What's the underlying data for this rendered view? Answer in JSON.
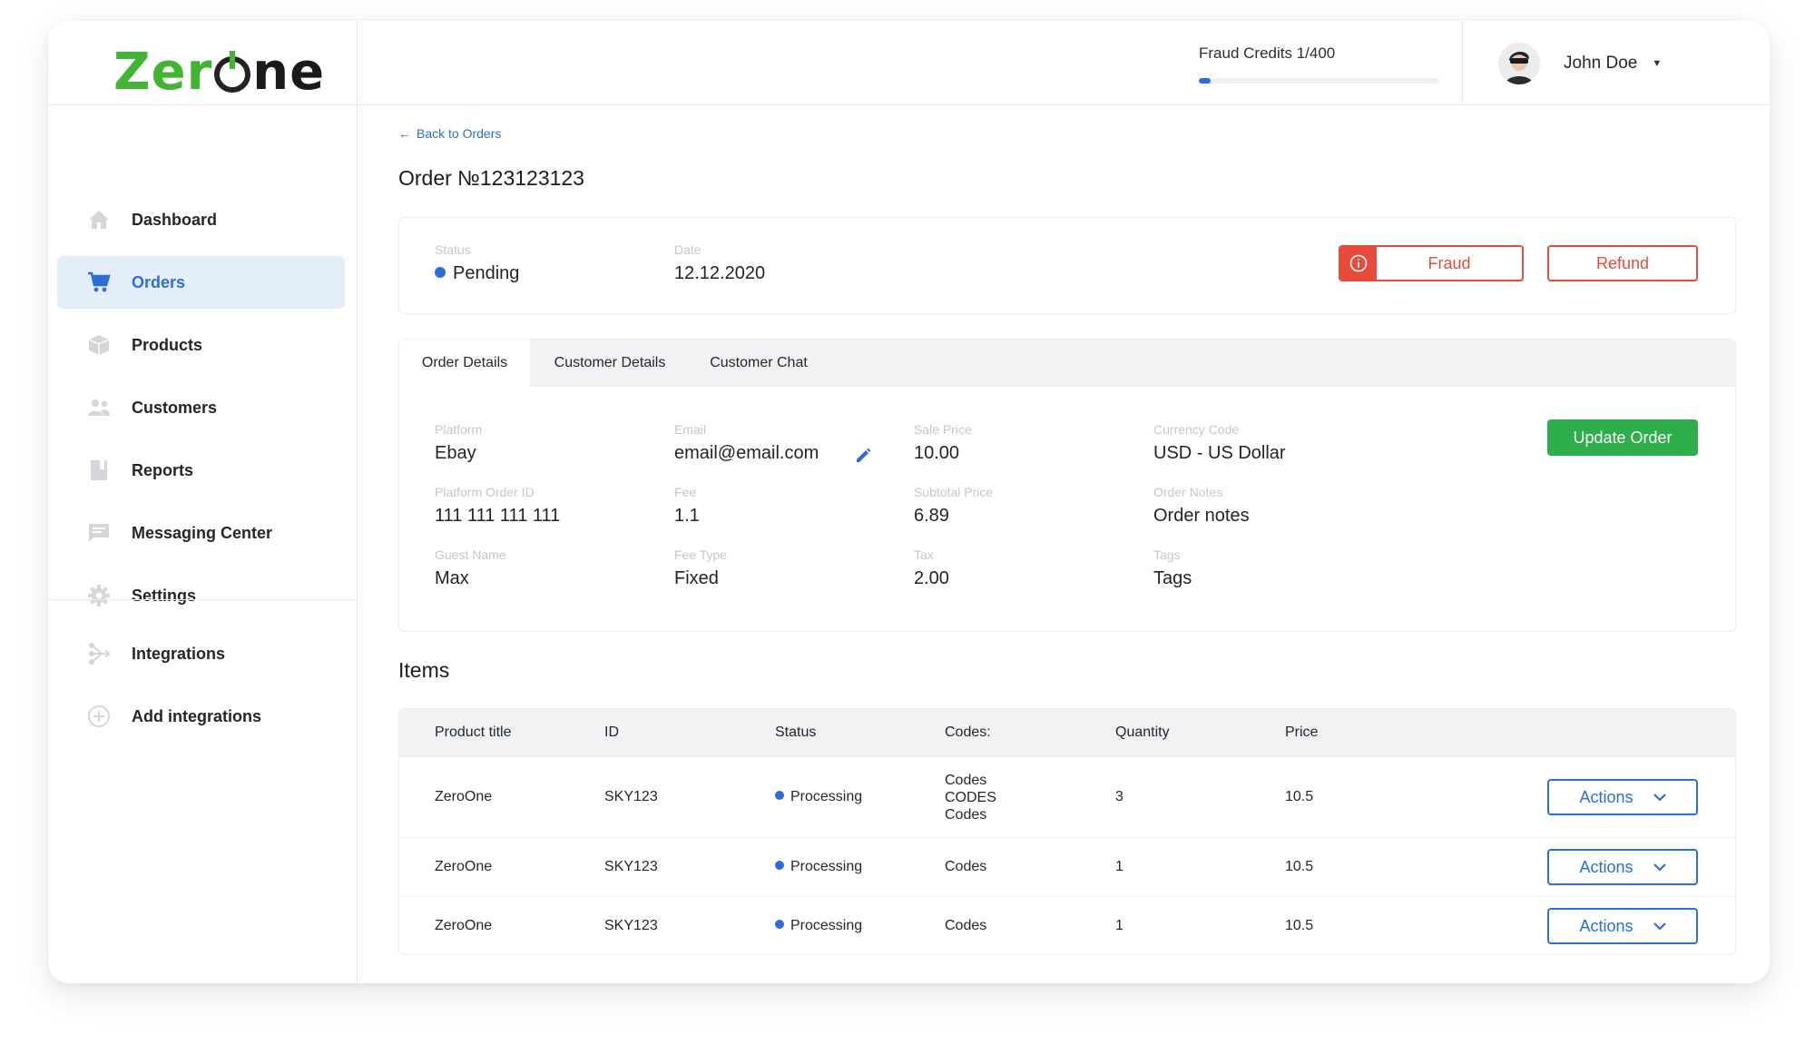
{
  "brand": {
    "logo_text_1": "Zer",
    "logo_text_2": "ne"
  },
  "sidebar": {
    "items": [
      {
        "label": "Dashboard",
        "icon": "home-icon",
        "active": false
      },
      {
        "label": "Orders",
        "icon": "cart-icon",
        "active": true
      },
      {
        "label": "Products",
        "icon": "box-icon",
        "active": false
      },
      {
        "label": "Customers",
        "icon": "users-icon",
        "active": false
      },
      {
        "label": "Reports",
        "icon": "report-icon",
        "active": false
      },
      {
        "label": "Messaging Center",
        "icon": "message-icon",
        "active": false
      },
      {
        "label": "Settings",
        "icon": "gear-icon",
        "active": false
      }
    ],
    "bottom_items": [
      {
        "label": "Integrations",
        "icon": "integration-icon"
      },
      {
        "label": "Add integrations",
        "icon": "plus-circle-icon"
      }
    ]
  },
  "header": {
    "credits_label": "Fraud Credits 1/400",
    "credits_used": 1,
    "credits_total": 400,
    "user_name": "John Doe"
  },
  "back_link": "Back to Orders",
  "page_title": "Order №123123123",
  "order": {
    "status_label": "Status",
    "status_value": "Pending",
    "date_label": "Date",
    "date_value": "12.12.2020"
  },
  "buttons": {
    "fraud": "Fraud",
    "refund": "Refund",
    "update": "Update Order",
    "actions": "Actions"
  },
  "tabs": [
    "Order Details",
    "Customer Details",
    "Customer Chat"
  ],
  "details": {
    "platform_label": "Platform",
    "platform": "Ebay",
    "email_label": "Email",
    "email": "email@email.com",
    "sale_price_label": "Sale Price",
    "sale_price": "10.00",
    "currency_label": "Currency Code",
    "currency": "USD - US Dollar",
    "platform_order_id_label": "Platform Order ID",
    "platform_order_id": "111 111 111 111",
    "fee_label": "Fee",
    "fee": "1.1",
    "subtotal_label": "Subtotal Price",
    "subtotal": "6.89",
    "order_notes_label": "Order Notes",
    "order_notes": "Order notes",
    "guest_name_label": "Guest Name",
    "guest_name": "Max",
    "fee_type_label": "Fee Type",
    "fee_type": "Fixed",
    "tax_label": "Tax",
    "tax": "2.00",
    "tags_label": "Tags",
    "tags": "Tags"
  },
  "items_title": "Items",
  "table": {
    "headers": [
      "Product title",
      "ID",
      "Status",
      "Codes:",
      "Quantity",
      "Price"
    ],
    "rows": [
      {
        "title": "ZeroOne",
        "id": "SKY123",
        "status": "Processing",
        "codes": [
          "Codes",
          "CODES",
          "Codes"
        ],
        "quantity": "3",
        "price": "10.5"
      },
      {
        "title": "ZeroOne",
        "id": "SKY123",
        "status": "Processing",
        "codes": [
          "Codes"
        ],
        "quantity": "1",
        "price": "10.5"
      },
      {
        "title": "ZeroOne",
        "id": "SKY123",
        "status": "Processing",
        "codes": [
          "Codes"
        ],
        "quantity": "1",
        "price": "10.5"
      }
    ]
  },
  "colors": {
    "accent": "#2b6fd6",
    "danger": "#e64b3c",
    "success": "#2ead4b",
    "brand_green": "#41b531"
  }
}
